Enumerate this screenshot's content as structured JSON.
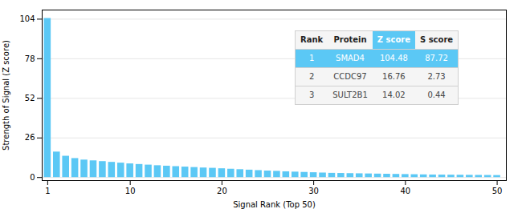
{
  "chart_data": {
    "type": "bar",
    "xlabel": "Signal Rank (Top 50)",
    "ylabel": "Strength of Signal (Z score)",
    "x": [
      1,
      2,
      3,
      4,
      5,
      6,
      7,
      8,
      9,
      10,
      11,
      12,
      13,
      14,
      15,
      16,
      17,
      18,
      19,
      20,
      21,
      22,
      23,
      24,
      25,
      26,
      27,
      28,
      29,
      30,
      31,
      32,
      33,
      34,
      35,
      36,
      37,
      38,
      39,
      40,
      41,
      42,
      43,
      44,
      45,
      46,
      47,
      48,
      49,
      50
    ],
    "values": [
      104.48,
      16.76,
      14.02,
      12.5,
      11.5,
      11.0,
      10.5,
      10.0,
      9.5,
      9.0,
      8.6,
      8.2,
      7.8,
      7.5,
      7.2,
      6.9,
      6.6,
      6.3,
      6.1,
      5.8,
      5.5,
      5.2,
      4.9,
      4.6,
      4.3,
      4.1,
      3.8,
      3.6,
      3.4,
      3.2,
      3.0,
      2.8,
      2.7,
      2.6,
      2.5,
      2.4,
      2.3,
      2.2,
      2.1,
      2.0,
      1.9,
      1.8,
      1.7,
      1.65,
      1.6,
      1.55,
      1.5,
      1.45,
      1.4,
      1.35
    ],
    "color": "#5bc8f5",
    "xlim": [
      0.4,
      51
    ],
    "ylim": [
      -2,
      110
    ],
    "xticks": [
      1,
      10,
      20,
      30,
      40,
      50
    ],
    "yticks": [
      0,
      26,
      52,
      78,
      104
    ],
    "grid": true,
    "table": {
      "header": [
        "Rank",
        "Protein",
        "Z score",
        "S score"
      ],
      "rows": [
        [
          "1",
          "SMAD4",
          "104.48",
          "87.72"
        ],
        [
          "2",
          "CCDC97",
          "16.76",
          "2.73"
        ],
        [
          "3",
          "SULT2B1",
          "14.02",
          "0.44"
        ]
      ]
    }
  }
}
